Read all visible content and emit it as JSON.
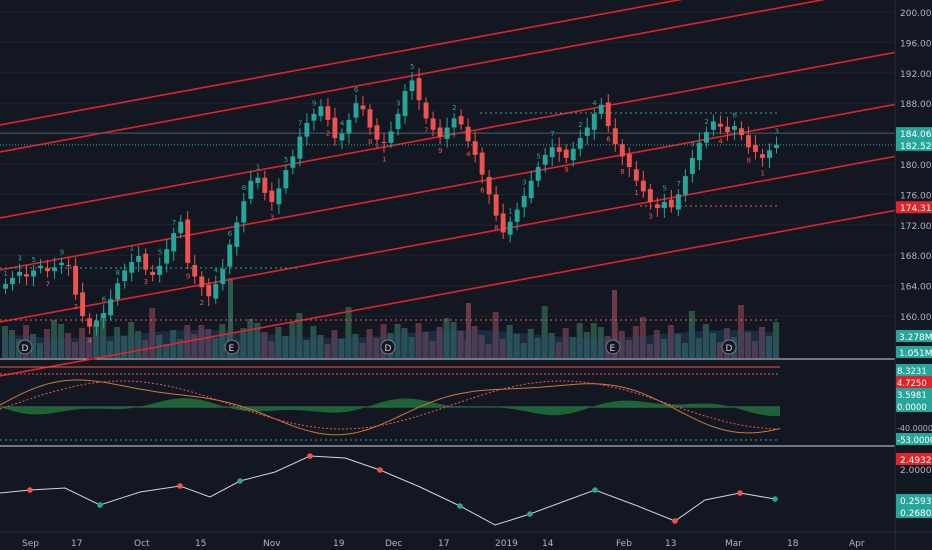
{
  "chart_data": [
    {
      "type": "candlestick",
      "panel": "price",
      "title": "",
      "ylim": [
        156,
        202
      ],
      "y_ticks": [
        "200.00",
        "196.00",
        "192.00",
        "188.00",
        "184.00",
        "180.00",
        "176.00",
        "172.00",
        "168.00",
        "164.00",
        "160.00"
      ],
      "price_labels": [
        {
          "text": "184.06",
          "value": 184.06,
          "color": "#26a69a"
        },
        {
          "text": "182.52",
          "value": 182.52,
          "color": "#26a69a"
        },
        {
          "text": "174.31",
          "value": 174.31,
          "color": "#e0242c"
        }
      ],
      "close_series": [
        164.2,
        165.0,
        165.8,
        165.2,
        166.0,
        166.6,
        165.9,
        166.4,
        167.0,
        166.6,
        162.8,
        160.0,
        158.6,
        159.4,
        160.4,
        162.2,
        164.3,
        166.0,
        167.1,
        167.9,
        166.1,
        165.4,
        166.6,
        168.8,
        170.9,
        172.4,
        167.0,
        165.2,
        163.8,
        162.6,
        164.2,
        166.2,
        169.4,
        172.3,
        175.1,
        177.8,
        178.2,
        176.2,
        175.0,
        176.8,
        179.2,
        181.0,
        183.6,
        185.4,
        186.6,
        187.6,
        185.8,
        183.4,
        184.0,
        185.8,
        188.0,
        187.2,
        184.8,
        183.2,
        182.8,
        184.3,
        186.6,
        189.6,
        191.0,
        188.4,
        186.0,
        184.5,
        183.6,
        184.8,
        186.0,
        185.2,
        183.0,
        181.2,
        178.6,
        176.0,
        173.2,
        171.0,
        172.4,
        174.0,
        175.8,
        177.8,
        179.6,
        181.2,
        182.2,
        181.6,
        180.8,
        182.0,
        183.4,
        184.8,
        186.6,
        187.8,
        185.0,
        182.6,
        181.0,
        179.6,
        177.8,
        176.4,
        175.0,
        174.2,
        175.0,
        174.3,
        176.0,
        178.4,
        180.8,
        182.8,
        184.2,
        185.6,
        184.9,
        184.2,
        185.0,
        183.8,
        182.2,
        181.6,
        180.8,
        181.8,
        182.52
      ],
      "x_ticks": [
        "Sep",
        "17",
        "Oct",
        "15",
        "Nov",
        "19",
        "Dec",
        "17",
        "2019",
        "14",
        "Feb",
        "13",
        "Mar",
        "18",
        "Apr"
      ],
      "markers": [
        "D",
        "E",
        "D",
        "E",
        "D"
      ]
    },
    {
      "type": "bar",
      "panel": "volume",
      "labels": [
        {
          "text": "3.278M",
          "color": "#26a69a"
        },
        {
          "text": "1.051M",
          "color": "#26a69a"
        }
      ]
    },
    {
      "type": "line",
      "panel": "oscillator",
      "labels": [
        {
          "text": "8.3231",
          "color": "#26a69a"
        },
        {
          "text": "4.7250",
          "color": "#e0242c"
        },
        {
          "text": "3.5981",
          "color": "#26a69a"
        },
        {
          "text": "0.0000",
          "color": "#26a69a"
        },
        {
          "text": "-53.0000",
          "color": "#26a69a"
        }
      ],
      "tick": "-40.0000"
    },
    {
      "type": "line",
      "panel": "indicator",
      "labels": [
        {
          "text": "2.4932",
          "color": "#e0242c"
        },
        {
          "text": "2.0000",
          "color": "#131722"
        },
        {
          "text": "0.2593",
          "color": "#26a69a"
        },
        {
          "text": "0.2680",
          "color": "#26a69a"
        }
      ]
    }
  ],
  "colors": {
    "background": "#131722",
    "up": "#26a69a",
    "down": "#ef5350",
    "channel": "#e0242c",
    "grid": "#1e222d",
    "axis_text": "#b2b5be"
  }
}
